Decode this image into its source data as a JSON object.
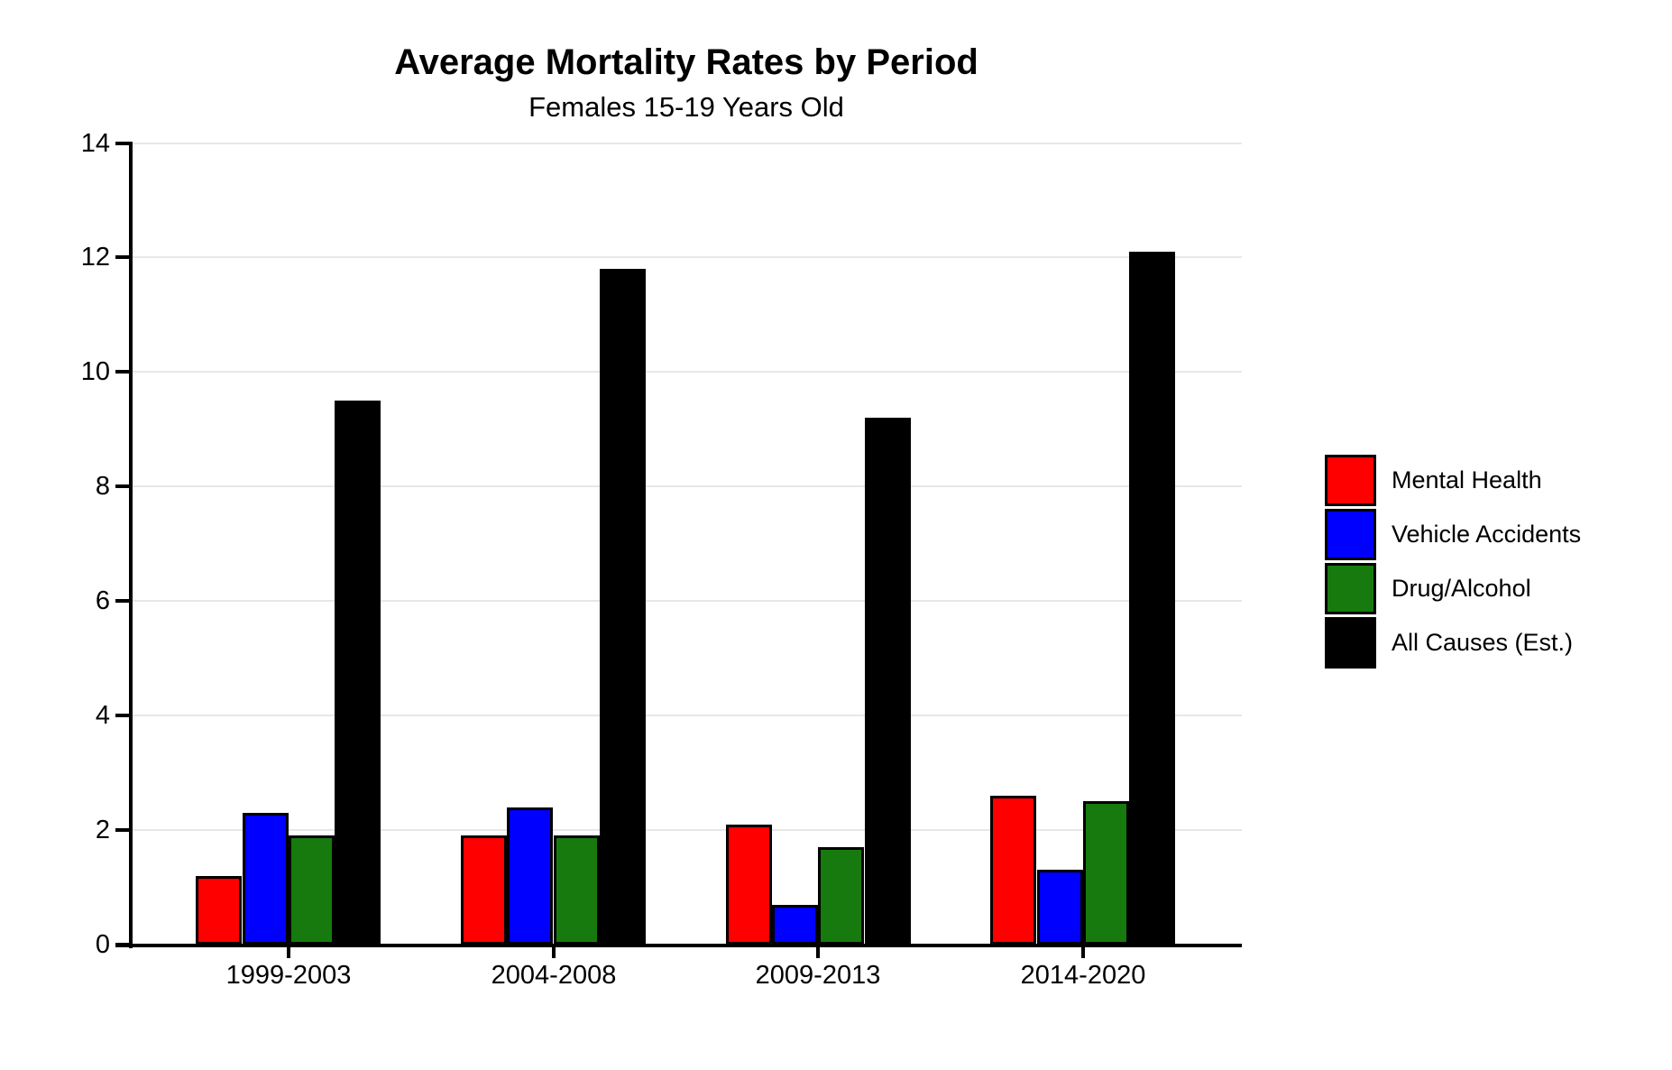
{
  "chart_data": {
    "type": "bar",
    "title": "Average Mortality Rates by Period",
    "subtitle": "Females 15-19 Years Old",
    "categories": [
      "1999-2003",
      "2004-2008",
      "2009-2013",
      "2014-2020"
    ],
    "series": [
      {
        "name": "Mental Health",
        "color": "#ff0000",
        "values": [
          1.2,
          1.9,
          2.1,
          2.6
        ]
      },
      {
        "name": "Vehicle Accidents",
        "color": "#0000ff",
        "values": [
          2.3,
          2.4,
          0.7,
          1.3
        ]
      },
      {
        "name": "Drug/Alcohol",
        "color": "#177a0e",
        "values": [
          1.9,
          1.9,
          1.7,
          2.5
        ]
      },
      {
        "name": "All Causes (Est.)",
        "color": "#000000",
        "values": [
          9.5,
          11.8,
          9.2,
          12.1
        ]
      }
    ],
    "xlabel": "",
    "ylabel": "",
    "ylim": [
      0,
      14
    ],
    "yticks": [
      0,
      2,
      4,
      6,
      8,
      10,
      12,
      14
    ],
    "grid": true,
    "gridline_color": "#e7e7e7",
    "bar_edge_color": "#000000",
    "legend_position": "right-center",
    "text_color": "#000000",
    "background_color": "#ffffff"
  }
}
